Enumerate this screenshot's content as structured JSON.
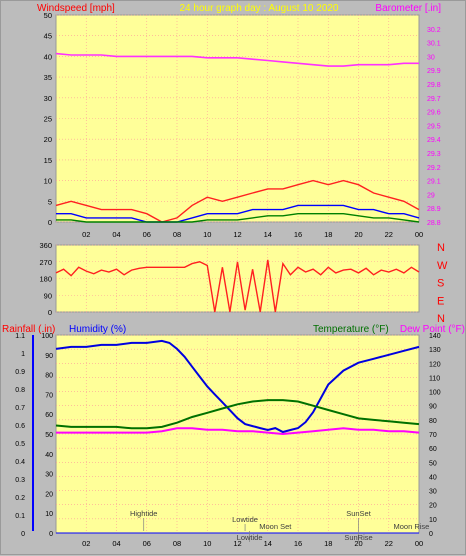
{
  "chart_data": [
    {
      "type": "line",
      "panel": "wind-barometer",
      "title": "24 hour graph day : August 10 2020",
      "ylabel_left": "Windspeed [mph]",
      "ylabel_right": "Barometer [.in]",
      "ylim_left": [
        0,
        50
      ],
      "ylim_right": [
        28.8,
        30.3
      ],
      "yticks_left": [
        "0",
        "5",
        "10",
        "15",
        "20",
        "25",
        "30",
        "35",
        "40",
        "45",
        "50"
      ],
      "yticks_right": [
        "28.8",
        "28.9",
        "29",
        "29.1",
        "29.2",
        "29.3",
        "29.4",
        "29.5",
        "29.6",
        "29.7",
        "29.8",
        "29.9",
        "30",
        "30.1",
        "30.2"
      ],
      "x_ticks": [
        "02",
        "04",
        "06",
        "08",
        "10",
        "12",
        "14",
        "16",
        "18",
        "20",
        "22",
        "00"
      ],
      "xlim": [
        0,
        24
      ],
      "series": [
        {
          "role": "barometer",
          "color": "#ff30ff",
          "axis": "right",
          "x": [
            0,
            1,
            2,
            3,
            4,
            5,
            6,
            7,
            8,
            9,
            10,
            11,
            12,
            13,
            14,
            15,
            16,
            17,
            18,
            19,
            20,
            21,
            22,
            23,
            24
          ],
          "values": [
            30.02,
            30.01,
            30.01,
            30.01,
            30.0,
            30.0,
            30.0,
            30.0,
            30.0,
            30.0,
            29.99,
            29.99,
            29.99,
            29.98,
            29.97,
            29.96,
            29.95,
            29.94,
            29.93,
            29.93,
            29.94,
            29.94,
            29.94,
            29.95,
            29.95
          ]
        },
        {
          "role": "gust",
          "color": "#ff2020",
          "axis": "left",
          "x": [
            0,
            1,
            2,
            3,
            4,
            5,
            6,
            7,
            8,
            9,
            10,
            11,
            12,
            13,
            14,
            15,
            16,
            17,
            18,
            19,
            20,
            21,
            22,
            23,
            24
          ],
          "values": [
            4,
            5,
            4,
            3,
            3,
            3,
            2,
            0,
            1,
            4,
            6,
            5,
            6,
            7,
            8,
            8,
            9,
            10,
            9,
            10,
            9,
            7,
            6,
            5,
            3
          ]
        },
        {
          "role": "windspeed",
          "color": "#0000ff",
          "axis": "left",
          "x": [
            0,
            1,
            2,
            3,
            4,
            5,
            6,
            7,
            8,
            9,
            10,
            11,
            12,
            13,
            14,
            15,
            16,
            17,
            18,
            19,
            20,
            21,
            22,
            23,
            24
          ],
          "values": [
            2,
            2,
            1,
            1,
            1,
            1,
            0,
            0,
            0,
            1,
            2,
            2,
            2,
            3,
            3,
            3,
            4,
            4,
            4,
            4,
            3,
            3,
            2,
            2,
            1
          ]
        },
        {
          "role": "average",
          "color": "#008000",
          "axis": "left",
          "x": [
            0,
            1,
            2,
            3,
            4,
            5,
            6,
            7,
            8,
            9,
            10,
            11,
            12,
            13,
            14,
            15,
            16,
            17,
            18,
            19,
            20,
            21,
            22,
            23,
            24
          ],
          "values": [
            0.5,
            0.5,
            0,
            0,
            0,
            0,
            0,
            0,
            0,
            0,
            0.5,
            0.5,
            0.5,
            1,
            1.5,
            1.5,
            2,
            2,
            2,
            2,
            1.5,
            1,
            1,
            0.5,
            0
          ]
        }
      ]
    },
    {
      "type": "line",
      "panel": "wind-direction",
      "ylim": [
        0,
        360
      ],
      "yticks_left": [
        "0",
        "90",
        "180",
        "270",
        "360"
      ],
      "yticks_right": [
        "N",
        "W",
        "S",
        "E",
        "N"
      ],
      "xlim": [
        0,
        24
      ],
      "series": [
        {
          "role": "direction",
          "color": "#ff2020",
          "x": [
            0,
            0.5,
            1,
            1.5,
            2,
            2.5,
            3,
            3.5,
            4,
            4.5,
            5,
            5.5,
            6,
            6.5,
            7,
            7.5,
            8,
            8.5,
            9,
            9.5,
            10,
            10.5,
            11,
            11.5,
            12,
            12.5,
            13,
            13.5,
            14,
            14.5,
            15,
            15.5,
            16,
            16.5,
            17,
            17.5,
            18,
            18.5,
            19,
            19.5,
            20,
            20.5,
            21,
            21.5,
            22,
            22.5,
            23,
            23.5,
            24
          ],
          "values": [
            210,
            230,
            195,
            240,
            220,
            205,
            225,
            215,
            230,
            200,
            225,
            235,
            240,
            240,
            240,
            240,
            240,
            240,
            260,
            270,
            250,
            0,
            240,
            0,
            270,
            10,
            230,
            0,
            280,
            0,
            260,
            200,
            240,
            215,
            230,
            200,
            240,
            210,
            225,
            230,
            210,
            235,
            200,
            225,
            215,
            230,
            210,
            240,
            215
          ]
        }
      ]
    },
    {
      "type": "line",
      "panel": "rain-humidity-temperature",
      "ylabel_left_1": "Rainfall (.in)",
      "ylabel_left_2": "Humidity (%)",
      "ylabel_right_1": "Temperature (°F)",
      "ylabel_right_2": "Dew Point (°F)",
      "ylim_rain": [
        0,
        1.1
      ],
      "ylim_humidity": [
        0,
        100
      ],
      "ylim_temp": [
        0,
        140
      ],
      "yticks_rain": [
        "0",
        "0.1",
        "0.2",
        "0.3",
        "0.4",
        "0.5",
        "0.6",
        "0.7",
        "0.8",
        "0.9",
        "1",
        "1.1"
      ],
      "yticks_humidity": [
        "0",
        "10",
        "20",
        "30",
        "40",
        "50",
        "60",
        "70",
        "80",
        "90",
        "100"
      ],
      "yticks_temp": [
        "0",
        "10",
        "20",
        "30",
        "40",
        "50",
        "60",
        "70",
        "80",
        "90",
        "100",
        "110",
        "120",
        "130",
        "140"
      ],
      "x_ticks": [
        "02",
        "04",
        "06",
        "08",
        "10",
        "12",
        "14",
        "16",
        "18",
        "20",
        "22",
        "00"
      ],
      "xlim": [
        0,
        24
      ],
      "annotations": [
        {
          "text": "Hightide",
          "x": 5.8,
          "row": 1
        },
        {
          "text": "Lowtide",
          "x": 12.5,
          "row": 2
        },
        {
          "text": "Moon Set",
          "x": 14.5,
          "row": 3
        },
        {
          "text": "Lowtide",
          "x": 12.8,
          "row": 4
        },
        {
          "text": "SunSet",
          "x": 20.0,
          "row": 1
        },
        {
          "text": "SunRise",
          "x": 20.0,
          "row": 4
        },
        {
          "text": "Moon Rise",
          "x": 23.5,
          "row": 3
        }
      ],
      "series": [
        {
          "role": "humidity",
          "color": "#0000e0",
          "axis": "humidity",
          "x": [
            0,
            1,
            2,
            3,
            4,
            5,
            6,
            7,
            7.5,
            8,
            8.5,
            9,
            9.5,
            10,
            10.5,
            11,
            11.5,
            12,
            12.5,
            13,
            13.5,
            14,
            14.5,
            15,
            15.5,
            16,
            16.5,
            17,
            17.5,
            18,
            19,
            20,
            21,
            22,
            23,
            24
          ],
          "values": [
            93,
            94,
            94,
            95,
            95,
            96,
            96,
            97,
            96,
            93,
            89,
            84,
            79,
            74,
            70,
            66,
            62,
            58,
            55,
            54,
            53,
            52,
            53,
            51,
            52,
            53,
            56,
            61,
            68,
            75,
            82,
            86,
            88,
            90,
            92,
            94
          ]
        },
        {
          "role": "temperature",
          "color": "#007000",
          "axis": "temp",
          "x": [
            0,
            1,
            2,
            3,
            4,
            5,
            6,
            7,
            8,
            9,
            10,
            11,
            12,
            13,
            14,
            15,
            16,
            17,
            18,
            19,
            20,
            21,
            22,
            23,
            24
          ],
          "values": [
            76,
            75,
            75,
            75,
            75,
            74,
            74,
            75,
            78,
            82,
            85,
            88,
            91,
            93,
            94,
            94,
            93,
            90,
            87,
            84,
            81,
            80,
            79,
            78,
            77
          ]
        },
        {
          "role": "dewpoint",
          "color": "#ff00ff",
          "axis": "temp",
          "x": [
            0,
            1,
            2,
            3,
            4,
            5,
            6,
            7,
            8,
            9,
            10,
            11,
            12,
            13,
            14,
            15,
            16,
            17,
            18,
            19,
            20,
            21,
            22,
            23,
            24
          ],
          "values": [
            71,
            71,
            71,
            71,
            71,
            71,
            71,
            72,
            74,
            74,
            73,
            73,
            72,
            72,
            71,
            70,
            71,
            72,
            73,
            74,
            73,
            73,
            72,
            72,
            71
          ]
        },
        {
          "role": "rainfall",
          "color": "#0000ff",
          "axis": "rain",
          "x": [
            0,
            24
          ],
          "values": [
            0,
            0
          ]
        }
      ]
    }
  ],
  "colors": {
    "plot_bg": "#ffff99",
    "frame_bg": "#bcbcbc",
    "grid": "#ff9999"
  }
}
